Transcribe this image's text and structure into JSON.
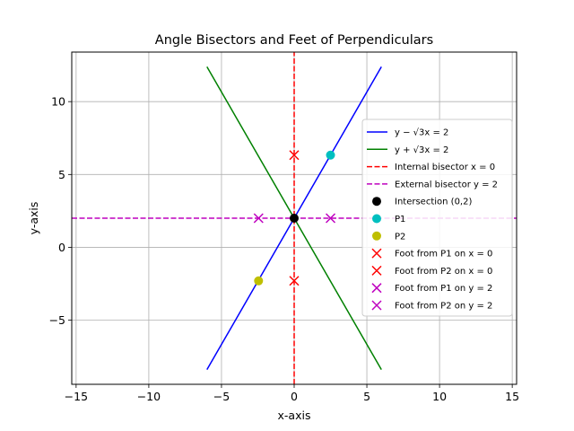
{
  "chart_data": {
    "type": "line",
    "title": "Angle Bisectors and Feet of Perpendiculars",
    "xlabel": "x-axis",
    "ylabel": "y-axis",
    "xlim": [
      -15.3,
      15.3
    ],
    "ylim": [
      -9.4,
      13.4
    ],
    "xticks": [
      -15,
      -10,
      -5,
      0,
      5,
      10,
      15
    ],
    "yticks": [
      -5,
      0,
      5,
      10
    ],
    "grid": true,
    "legend_position": "right",
    "lines": [
      {
        "label": "y − √3x = 2",
        "color": "#0000ff",
        "style": "solid",
        "points": [
          [
            -6,
            -8.392
          ],
          [
            6,
            12.392
          ]
        ]
      },
      {
        "label": "y + √3x = 2",
        "color": "#008000",
        "style": "solid",
        "points": [
          [
            -6,
            12.392
          ],
          [
            6,
            -8.392
          ]
        ]
      },
      {
        "label": "Internal bisector x = 0",
        "color": "#ff0000",
        "style": "dashed",
        "points": [
          [
            0,
            -9.4
          ],
          [
            0,
            13.4
          ]
        ]
      },
      {
        "label": "External bisector y = 2",
        "color": "#bf00bf",
        "style": "dashed",
        "points": [
          [
            -15.3,
            2
          ],
          [
            15.3,
            2
          ]
        ]
      }
    ],
    "points": [
      {
        "label": "Intersection (0,2)",
        "color": "#000000",
        "marker": "circle",
        "x": 0,
        "y": 2
      },
      {
        "label": "P1",
        "color": "#00bfbf",
        "marker": "circle",
        "x": 2.5,
        "y": 6.33
      },
      {
        "label": "P2",
        "color": "#bfbf00",
        "marker": "circle",
        "x": -2.45,
        "y": -2.3
      },
      {
        "label": "Foot from P1 on x = 0",
        "color": "#ff0000",
        "marker": "x",
        "x": 0,
        "y": 6.33
      },
      {
        "label": "Foot from P2 on x = 0",
        "color": "#ff0000",
        "marker": "x",
        "x": 0,
        "y": -2.3
      },
      {
        "label": "Foot from P1 on y = 2",
        "color": "#bf00bf",
        "marker": "x",
        "x": 2.5,
        "y": 2
      },
      {
        "label": "Foot from P2 on y = 2",
        "color": "#bf00bf",
        "marker": "x",
        "x": -2.45,
        "y": 2
      }
    ],
    "legend": [
      {
        "kind": "solid",
        "color": "#0000ff",
        "text": "y − √3x = 2"
      },
      {
        "kind": "solid",
        "color": "#008000",
        "text": "y + √3x = 2"
      },
      {
        "kind": "dashed",
        "color": "#ff0000",
        "text": "Internal bisector x = 0"
      },
      {
        "kind": "dashed",
        "color": "#bf00bf",
        "text": "External bisector y = 2"
      },
      {
        "kind": "circle",
        "color": "#000000",
        "text": "Intersection (0,2)"
      },
      {
        "kind": "circle",
        "color": "#00bfbf",
        "text": "P1"
      },
      {
        "kind": "circle",
        "color": "#bfbf00",
        "text": "P2"
      },
      {
        "kind": "x",
        "color": "#ff0000",
        "text": "Foot from P1 on x = 0"
      },
      {
        "kind": "x",
        "color": "#ff0000",
        "text": "Foot from P2 on x = 0"
      },
      {
        "kind": "x",
        "color": "#bf00bf",
        "text": "Foot from P1 on y = 2"
      },
      {
        "kind": "x",
        "color": "#bf00bf",
        "text": "Foot from P2 on y = 2"
      }
    ]
  }
}
